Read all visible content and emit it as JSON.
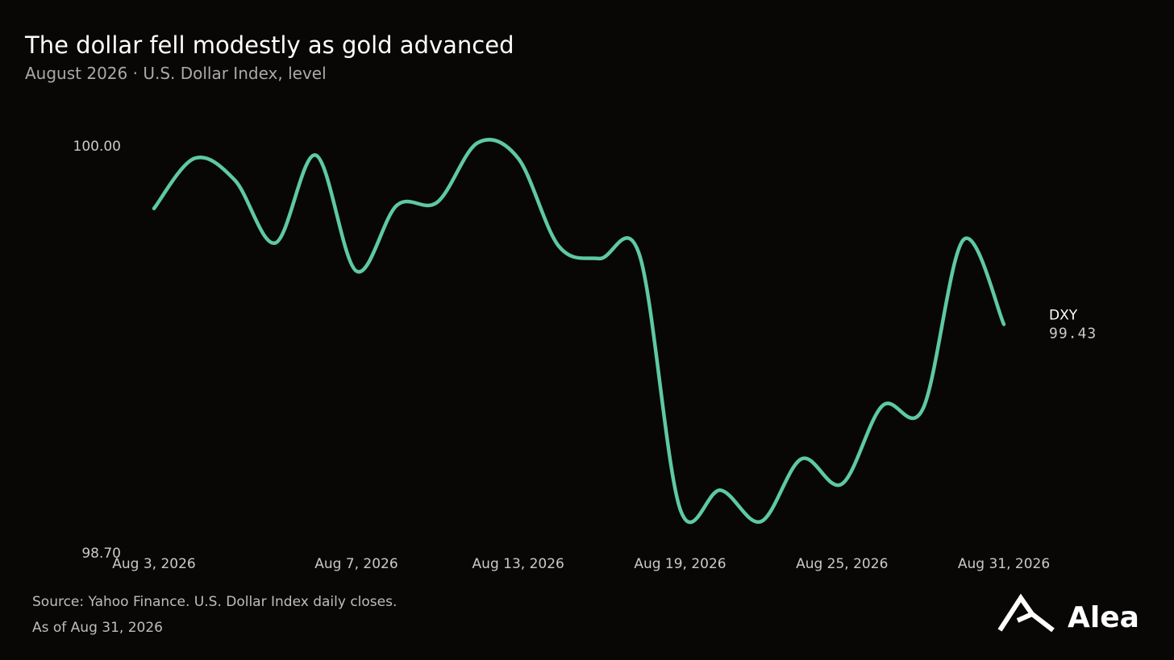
{
  "chart_data": {
    "type": "line",
    "title": "The dollar fell modestly as gold advanced",
    "subtitle": "August 2026 · U.S. Dollar Index, level",
    "categories": [
      "Aug 3, 2026",
      null,
      null,
      null,
      null,
      "Aug 7, 2026",
      null,
      null,
      null,
      "Aug 13, 2026",
      null,
      null,
      null,
      "Aug 19, 2026",
      null,
      null,
      null,
      "Aug 25, 2026",
      null,
      null,
      null,
      "Aug 31, 2026"
    ],
    "series": [
      {
        "name": "DXY",
        "color": "#5ec9a2",
        "values": [
          99.8,
          99.96,
          99.89,
          99.69,
          99.97,
          99.6,
          99.81,
          99.82,
          100.01,
          99.96,
          99.68,
          99.64,
          99.65,
          98.84,
          98.9,
          98.8,
          99.0,
          98.92,
          99.17,
          99.16,
          99.7,
          99.43
        ]
      }
    ],
    "ylim": [
      98.7,
      100.0
    ],
    "yticks": [
      {
        "value": 100.0,
        "label": "100.00"
      },
      {
        "value": 98.7,
        "label": "98.70"
      }
    ],
    "source": "Source: Yahoo Finance. U.S. Dollar Index daily closes.",
    "note": "As of Aug 31, 2026",
    "brand": "Alea"
  }
}
